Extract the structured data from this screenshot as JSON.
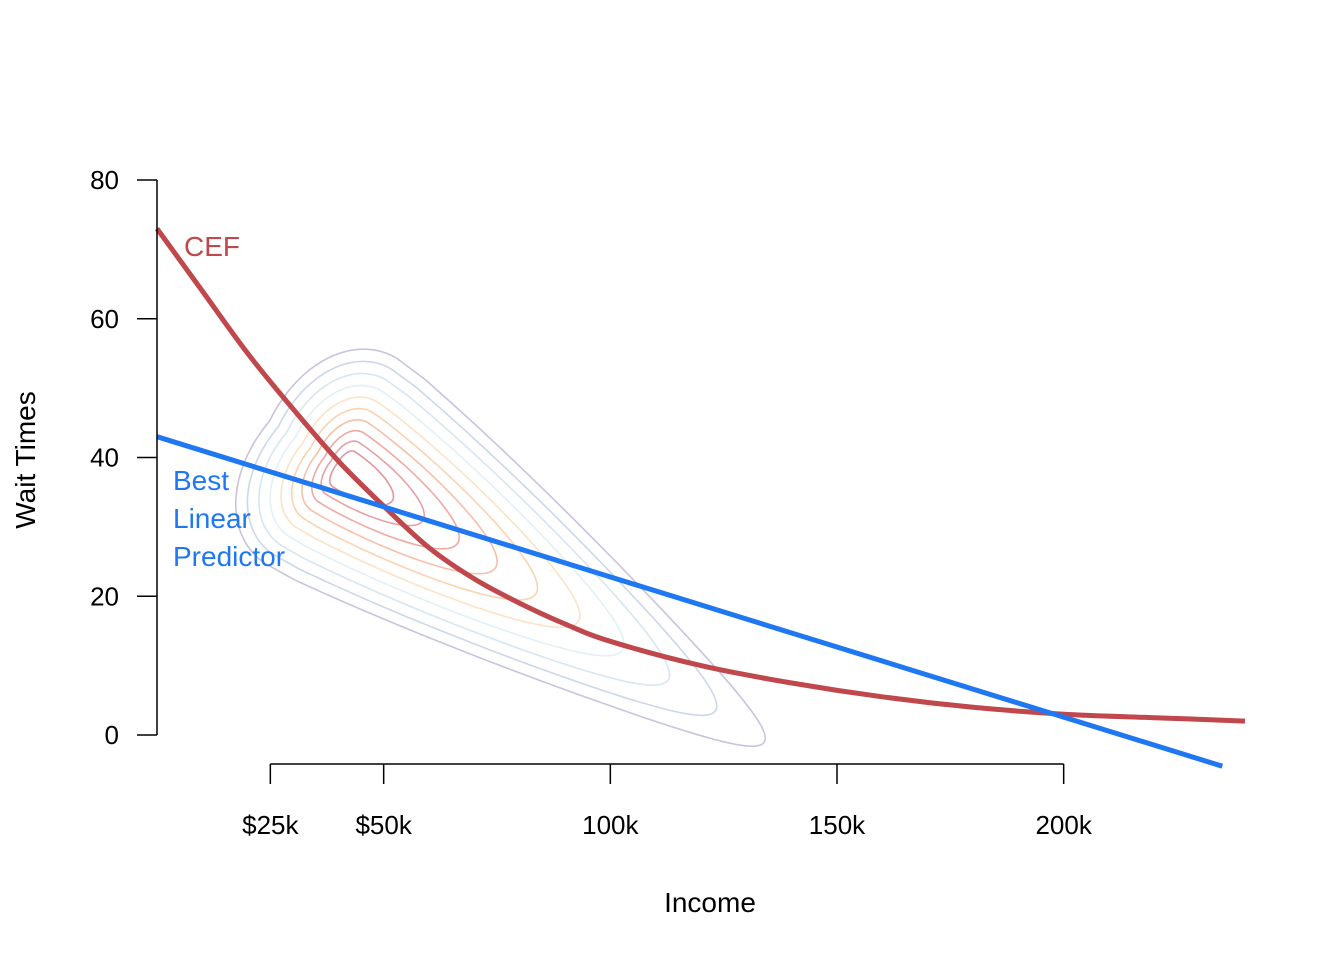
{
  "chart_data": {
    "type": "line",
    "title": "",
    "xlabel": "Income",
    "ylabel": "Wait Times",
    "xlim": [
      0,
      240000
    ],
    "ylim": [
      0,
      80
    ],
    "grid": false,
    "legend": "none (direct labels)",
    "x_ticks": [
      {
        "value": 25000,
        "label": "$25k"
      },
      {
        "value": 50000,
        "label": "$50k"
      },
      {
        "value": 100000,
        "label": "100k"
      },
      {
        "value": 150000,
        "label": "150k"
      },
      {
        "value": 200000,
        "label": "200k"
      }
    ],
    "y_ticks": [
      {
        "value": 0,
        "label": "0"
      },
      {
        "value": 20,
        "label": "20"
      },
      {
        "value": 40,
        "label": "40"
      },
      {
        "value": 60,
        "label": "60"
      },
      {
        "value": 80,
        "label": "80"
      }
    ],
    "series": [
      {
        "name": "CEF",
        "label_lines": [
          "CEF"
        ],
        "color": "#c0474b",
        "x": [
          0,
          10000,
          20000,
          30000,
          40000,
          50000,
          60000,
          70000,
          80000,
          90000,
          100000,
          120000,
          140000,
          160000,
          180000,
          200000,
          220000,
          240000
        ],
        "y": [
          73,
          64,
          55,
          47,
          39.5,
          33,
          27,
          22.5,
          19,
          16,
          13.5,
          10,
          7.5,
          5.5,
          4,
          3,
          2.5,
          2
        ]
      },
      {
        "name": "Best Linear Predictor",
        "label_lines": [
          "Best",
          "Linear",
          "Predictor"
        ],
        "color": "#1f78f2",
        "x": [
          0,
          235000
        ],
        "y": [
          43,
          -4.5
        ]
      }
    ],
    "density_contours": {
      "levels": 10,
      "colors_outer_to_inner": [
        "#c9c3df",
        "#cdd7ea",
        "#d6e6f2",
        "#e3f0f5",
        "#fbe3c6",
        "#fbd3b0",
        "#f6c0a8",
        "#efaaa2",
        "#e8a0a6",
        "#e496a0"
      ]
    }
  }
}
